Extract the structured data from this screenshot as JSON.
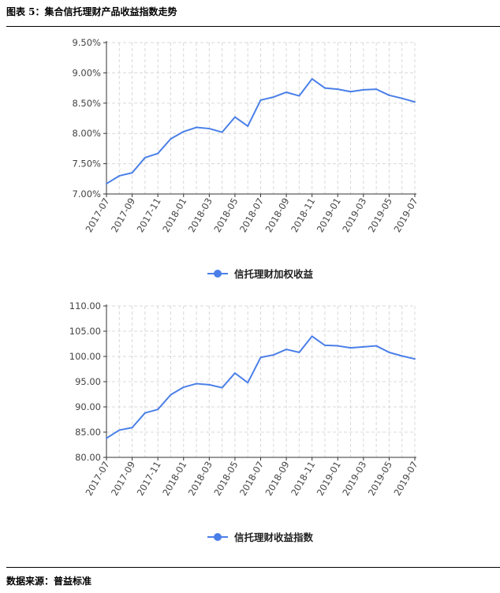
{
  "header": {
    "title": "图表 5：集合信托理财产品收益指数走势"
  },
  "footer": {
    "source": "数据来源：普益标准"
  },
  "colors": {
    "line": "#4a7fe8",
    "grid": "#d8d8d8",
    "axis": "#333333"
  },
  "chart_data": [
    {
      "type": "line",
      "x": [
        "2017-07",
        "2017-08",
        "2017-09",
        "2017-10",
        "2017-11",
        "2017-12",
        "2018-01",
        "2018-02",
        "2018-03",
        "2018-04",
        "2018-05",
        "2018-06",
        "2018-07",
        "2018-08",
        "2018-09",
        "2018-10",
        "2018-11",
        "2018-12",
        "2019-01",
        "2019-02",
        "2019-03",
        "2019-04",
        "2019-05",
        "2019-06",
        "2019-07"
      ],
      "x_tick_labels": [
        "2017-07",
        "2017-09",
        "2017-11",
        "2018-01",
        "2018-03",
        "2018-05",
        "2018-07",
        "2018-09",
        "2018-11",
        "2019-01",
        "2019-03",
        "2019-05",
        "2019-07"
      ],
      "series": [
        {
          "name": "信托理财加权收益",
          "values": [
            7.17,
            7.3,
            7.35,
            7.6,
            7.67,
            7.91,
            8.03,
            8.1,
            8.08,
            8.02,
            8.27,
            8.12,
            8.55,
            8.6,
            8.68,
            8.62,
            8.9,
            8.75,
            8.73,
            8.69,
            8.72,
            8.73,
            8.63,
            8.58,
            8.52
          ]
        }
      ],
      "y_tick_labels": [
        "7.00%",
        "7.50%",
        "8.00%",
        "8.50%",
        "9.00%",
        "9.50%"
      ],
      "ylim": [
        7.0,
        9.5
      ],
      "grid": true,
      "legend": "bottom"
    },
    {
      "type": "line",
      "x": [
        "2017-07",
        "2017-08",
        "2017-09",
        "2017-10",
        "2017-11",
        "2017-12",
        "2018-01",
        "2018-02",
        "2018-03",
        "2018-04",
        "2018-05",
        "2018-06",
        "2018-07",
        "2018-08",
        "2018-09",
        "2018-10",
        "2018-11",
        "2018-12",
        "2019-01",
        "2019-02",
        "2019-03",
        "2019-04",
        "2019-05",
        "2019-06",
        "2019-07"
      ],
      "x_tick_labels": [
        "2017-07",
        "2017-09",
        "2017-11",
        "2018-01",
        "2018-03",
        "2018-05",
        "2018-07",
        "2018-09",
        "2018-11",
        "2019-01",
        "2019-03",
        "2019-05",
        "2019-07"
      ],
      "series": [
        {
          "name": "信托理财收益指数",
          "values": [
            83.8,
            85.4,
            85.9,
            88.8,
            89.5,
            92.4,
            93.9,
            94.6,
            94.4,
            93.8,
            96.7,
            94.8,
            99.8,
            100.3,
            101.4,
            100.8,
            104.0,
            102.2,
            102.1,
            101.7,
            101.9,
            102.1,
            100.8,
            100.1,
            99.5
          ]
        }
      ],
      "y_tick_labels": [
        "80.00",
        "85.00",
        "90.00",
        "95.00",
        "100.00",
        "105.00",
        "110.00"
      ],
      "ylim": [
        80,
        110
      ],
      "grid": true,
      "legend": "bottom"
    }
  ]
}
